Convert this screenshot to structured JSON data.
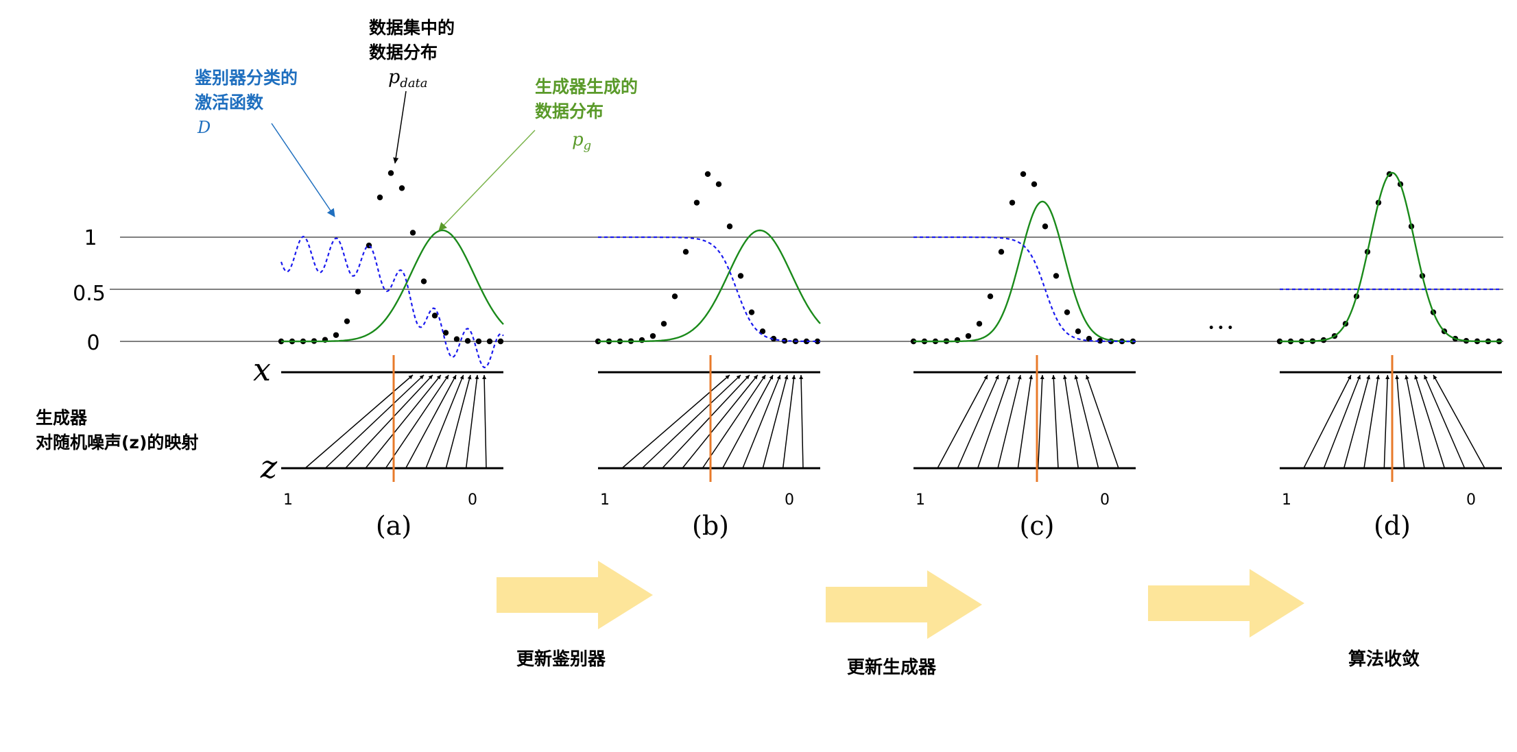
{
  "annotations": {
    "p_data_label_line1": "数据集中的",
    "p_data_label_line2": "数据分布",
    "p_data_symbol": "p",
    "p_data_subscript": "data",
    "discriminator_label_line1": "鉴别器分类的",
    "discriminator_label_line2": "激活函数",
    "discriminator_symbol": "D",
    "generator_label_line1": "生成器生成的",
    "generator_label_line2": "数据分布",
    "p_g_symbol": "p",
    "p_g_subscript": "g",
    "mapping_label_line1": "生成器",
    "mapping_label_line2": "对随机噪声(z)的映射"
  },
  "axis": {
    "y_ticks": [
      "1",
      "0.5",
      "0"
    ],
    "x_symbol": "x",
    "z_symbol": "z"
  },
  "panels": [
    {
      "caption": "(a)",
      "z_left": "1",
      "z_right": "0"
    },
    {
      "caption": "(b)",
      "z_left": "1",
      "z_right": "0"
    },
    {
      "caption": "(c)",
      "z_left": "1",
      "z_right": "0"
    },
    {
      "caption": "(d)",
      "z_left": "1",
      "z_right": "0"
    }
  ],
  "ellipsis": "• • •",
  "steps": [
    {
      "label": "更新鉴别器"
    },
    {
      "label": "更新生成器"
    },
    {
      "label": "算法收敛"
    }
  ],
  "colors": {
    "data_dots": "#000000",
    "discriminator": "#1a1aee",
    "generator": "#1a8a1a",
    "discriminator_label": "#1f6fbf",
    "generator_label": "#5a9a2a",
    "mapping_marker": "#e87a2a",
    "arrow_fill": "#fde59a"
  }
}
